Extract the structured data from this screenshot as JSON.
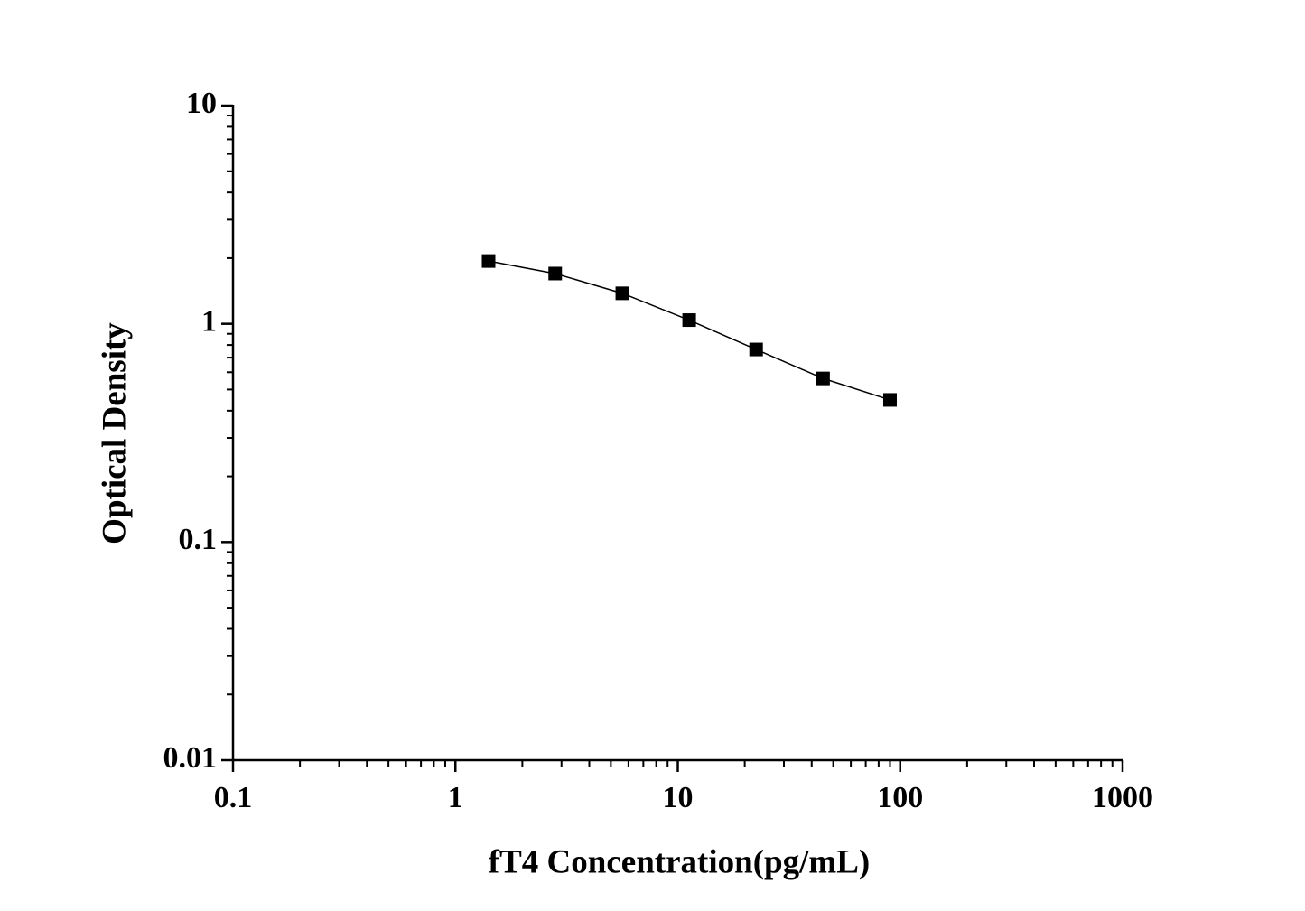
{
  "chart_data": {
    "type": "scatter-line",
    "xlabel": "fT4 Concentration(pg/mL)",
    "ylabel": "Optical Density",
    "x": [
      1.41,
      2.81,
      5.63,
      11.25,
      22.5,
      45,
      90
    ],
    "series": [
      {
        "color": "#000000",
        "values": [
          1.94,
          1.7,
          1.38,
          1.04,
          0.763,
          0.562,
          0.448
        ]
      }
    ],
    "xlim": [
      0.1,
      1000
    ],
    "ylim": [
      0.01,
      10
    ],
    "xticks": [
      0.1,
      1,
      10,
      100,
      1000
    ],
    "yticks": [
      0.01,
      0.1,
      1,
      10
    ],
    "xscale": "log",
    "yscale": "log",
    "grid": false,
    "minor_ticks": true
  }
}
